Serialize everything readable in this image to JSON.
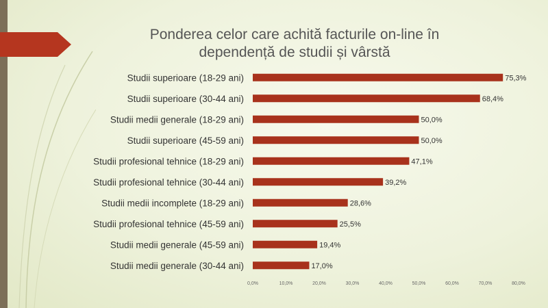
{
  "chart_data": {
    "type": "bar",
    "orientation": "horizontal",
    "title_lines": [
      "Ponderea celor care achită facturile on-line în",
      "dependență de studii și vârstă"
    ],
    "categories": [
      "Studii superioare (18-29 ani)",
      "Studii superioare (30-44 ani)",
      "Studii medii generale (18-29 ani)",
      "Studii superioare (45-59 ani)",
      "Studii profesional tehnice (18-29 ani)",
      "Studii profesional tehnice (30-44 ani)",
      "Studii medii incomplete (18-29 ani)",
      "Studii profesional tehnice (45-59 ani)",
      "Studii medii generale (45-59 ani)",
      "Studii medii generale (30-44 ani)"
    ],
    "values": [
      75.3,
      68.4,
      50.0,
      50.0,
      47.1,
      39.2,
      28.6,
      25.5,
      19.4,
      17.0
    ],
    "value_labels": [
      "75,3%",
      "68,4%",
      "50,0%",
      "50,0%",
      "47,1%",
      "39,2%",
      "28,6%",
      "25,5%",
      "19,4%",
      "17,0%"
    ],
    "xlim": [
      0,
      80
    ],
    "x_ticks": [
      0,
      10,
      20,
      30,
      40,
      50,
      60,
      70,
      80
    ],
    "x_tick_labels": [
      "0,0%",
      "10,0%",
      "20,0%",
      "30,0%",
      "40,0%",
      "50,0%",
      "60,0%",
      "70,0%",
      "80,0%"
    ],
    "bar_color": "#a8321c",
    "grid": false,
    "legend": "none"
  },
  "colors": {
    "accent": "#c0392b",
    "left_bar": "#7c6f58",
    "background": "#eef2dc"
  }
}
